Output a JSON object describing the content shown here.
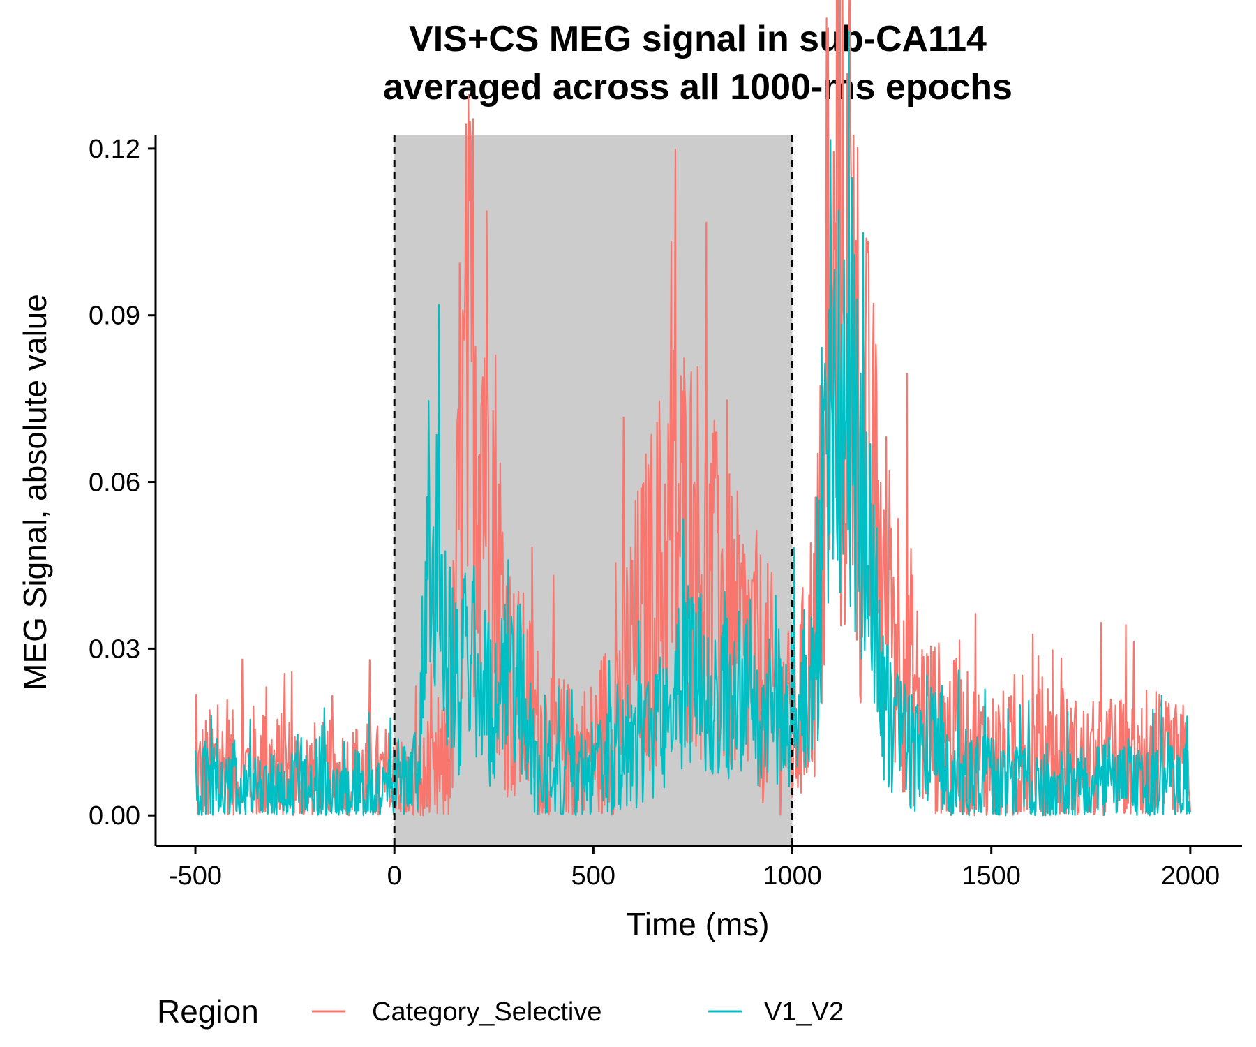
{
  "chart_data": {
    "type": "line",
    "title_line1": "VIS+CS MEG signal in sub-CA114",
    "title_line2": "averaged across all 1000-ms epochs",
    "xlabel": "Time (ms)",
    "ylabel": "MEG Signal, absolute value",
    "xlim": [
      -600,
      2130
    ],
    "ylim": [
      -0.0055,
      0.1225
    ],
    "x_ticks": [
      -500,
      0,
      500,
      1000,
      1500,
      2000
    ],
    "x_tick_labels": [
      "-500",
      "0",
      "500",
      "1000",
      "1500",
      "2000"
    ],
    "y_ticks": [
      0,
      0.03,
      0.06,
      0.09,
      0.12
    ],
    "y_tick_labels": [
      "0.00",
      "0.03",
      "0.06",
      "0.09",
      "0.12"
    ],
    "shaded_region": {
      "x_start": 0,
      "x_end": 1000,
      "color": "#cccccc"
    },
    "vlines": [
      0,
      1000
    ],
    "grid": false,
    "legend": {
      "title": "Region",
      "position": "bottom"
    },
    "series": [
      {
        "name": "Category_Selective",
        "color": "#F8766D",
        "x": [
          -500,
          -450,
          -400,
          -350,
          -300,
          -250,
          -200,
          -150,
          -100,
          -50,
          0,
          50,
          80,
          110,
          140,
          160,
          180,
          200,
          220,
          240,
          260,
          280,
          300,
          330,
          360,
          400,
          450,
          500,
          550,
          600,
          650,
          700,
          730,
          760,
          800,
          850,
          900,
          950,
          980,
          1000,
          1030,
          1060,
          1090,
          1110,
          1130,
          1150,
          1170,
          1200,
          1230,
          1260,
          1290,
          1320,
          1350,
          1400,
          1450,
          1500,
          1550,
          1600,
          1650,
          1700,
          1750,
          1800,
          1850,
          1900,
          1950,
          2000
        ],
        "values": [
          0.006,
          0.008,
          0.007,
          0.008,
          0.007,
          0.007,
          0.006,
          0.006,
          0.006,
          0.006,
          0.005,
          0.004,
          0.005,
          0.005,
          0.012,
          0.045,
          0.075,
          0.08,
          0.075,
          0.065,
          0.045,
          0.03,
          0.022,
          0.02,
          0.015,
          0.012,
          0.01,
          0.011,
          0.018,
          0.03,
          0.04,
          0.05,
          0.05,
          0.048,
          0.04,
          0.032,
          0.028,
          0.022,
          0.018,
          0.014,
          0.022,
          0.035,
          0.065,
          0.088,
          0.095,
          0.085,
          0.07,
          0.055,
          0.04,
          0.035,
          0.028,
          0.018,
          0.016,
          0.013,
          0.011,
          0.01,
          0.009,
          0.01,
          0.009,
          0.009,
          0.008,
          0.009,
          0.008,
          0.008,
          0.008,
          0.008
        ]
      },
      {
        "name": "V1_V2",
        "color": "#00BFC4",
        "x": [
          -500,
          -450,
          -400,
          -350,
          -300,
          -250,
          -200,
          -150,
          -100,
          -50,
          0,
          30,
          60,
          80,
          100,
          120,
          140,
          160,
          180,
          200,
          220,
          240,
          260,
          300,
          330,
          360,
          400,
          450,
          500,
          550,
          600,
          650,
          700,
          730,
          760,
          800,
          850,
          900,
          950,
          1000,
          1030,
          1060,
          1090,
          1110,
          1130,
          1150,
          1170,
          1200,
          1230,
          1260,
          1290,
          1320,
          1350,
          1400,
          1450,
          1500,
          1550,
          1600,
          1650,
          1700,
          1750,
          1800,
          1850,
          1900,
          1950,
          2000
        ],
        "values": [
          0.005,
          0.006,
          0.005,
          0.005,
          0.004,
          0.004,
          0.004,
          0.004,
          0.004,
          0.004,
          0.005,
          0.007,
          0.012,
          0.035,
          0.045,
          0.038,
          0.03,
          0.022,
          0.028,
          0.032,
          0.025,
          0.02,
          0.018,
          0.028,
          0.018,
          0.008,
          0.006,
          0.006,
          0.008,
          0.01,
          0.012,
          0.016,
          0.022,
          0.025,
          0.026,
          0.024,
          0.022,
          0.02,
          0.019,
          0.02,
          0.022,
          0.03,
          0.06,
          0.08,
          0.085,
          0.075,
          0.055,
          0.04,
          0.02,
          0.015,
          0.012,
          0.01,
          0.016,
          0.008,
          0.006,
          0.006,
          0.006,
          0.006,
          0.005,
          0.005,
          0.005,
          0.005,
          0.005,
          0.005,
          0.005,
          0.005
        ]
      }
    ]
  }
}
